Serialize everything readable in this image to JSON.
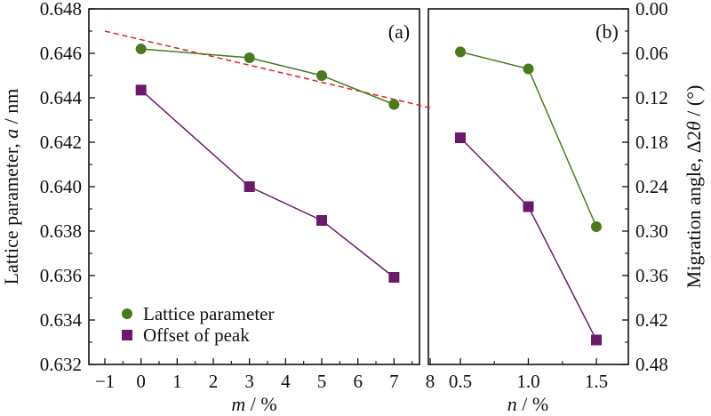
{
  "chart_data": [
    {
      "type": "line",
      "panel_label": "(a)",
      "xlabel": "m / %",
      "ylabel": "Lattice parameter, a / nm",
      "xlim": [
        -1,
        8
      ],
      "ylim": [
        0.632,
        0.648
      ],
      "y2lim": [
        0.0,
        0.48
      ],
      "y2_inverted": true,
      "xticks": [
        "−1",
        "0",
        "1",
        "2",
        "3",
        "4",
        "5",
        "6",
        "7",
        "8"
      ],
      "yticks": [
        "0.632",
        "0.634",
        "0.636",
        "0.638",
        "0.640",
        "0.642",
        "0.644",
        "0.646",
        "0.648"
      ],
      "x": [
        0,
        3,
        5,
        7
      ],
      "series": [
        {
          "name": "Lattice parameter",
          "axis": "left",
          "marker": "circle",
          "color": "#4a7a1c",
          "values": [
            0.6462,
            0.6458,
            0.645,
            0.6437
          ]
        },
        {
          "name": "Offset of peak",
          "axis": "right",
          "marker": "square",
          "color": "#6a1a6a",
          "values": [
            0.1096,
            0.24,
            0.2856,
            0.3624
          ]
        }
      ],
      "trend_line": {
        "color": "#e02020",
        "style": "dashed",
        "from": [
          -1,
          0.647
        ],
        "to": [
          8,
          0.64355
        ]
      },
      "legend": {
        "position": "bottom-left",
        "entries": [
          "Lattice parameter",
          "Offset of peak"
        ]
      },
      "grid": false
    },
    {
      "type": "line",
      "panel_label": "(b)",
      "xlabel": "n / %",
      "ylabel": "Migration angle, Δ2θ / (°)",
      "ylim": [
        0.0,
        0.48
      ],
      "y_inverted": true,
      "xticks": [
        "0.5",
        "1.0",
        "1.5"
      ],
      "yticks": [
        "0.00",
        "0.06",
        "0.12",
        "0.18",
        "0.24",
        "0.30",
        "0.36",
        "0.42",
        "0.48"
      ],
      "x": [
        0.5,
        1.0,
        1.5
      ],
      "series": [
        {
          "name": "Lattice parameter",
          "marker": "circle",
          "color": "#4a7a1c",
          "values": [
            0.058,
            0.081,
            0.294
          ]
        },
        {
          "name": "Offset of peak",
          "marker": "square",
          "color": "#6a1a6a",
          "values": [
            0.174,
            0.267,
            0.447
          ]
        }
      ],
      "grid": false
    }
  ],
  "colors": {
    "green": "#4a7a1c",
    "purple": "#6a1a6a",
    "red_dashed": "#e02020"
  }
}
